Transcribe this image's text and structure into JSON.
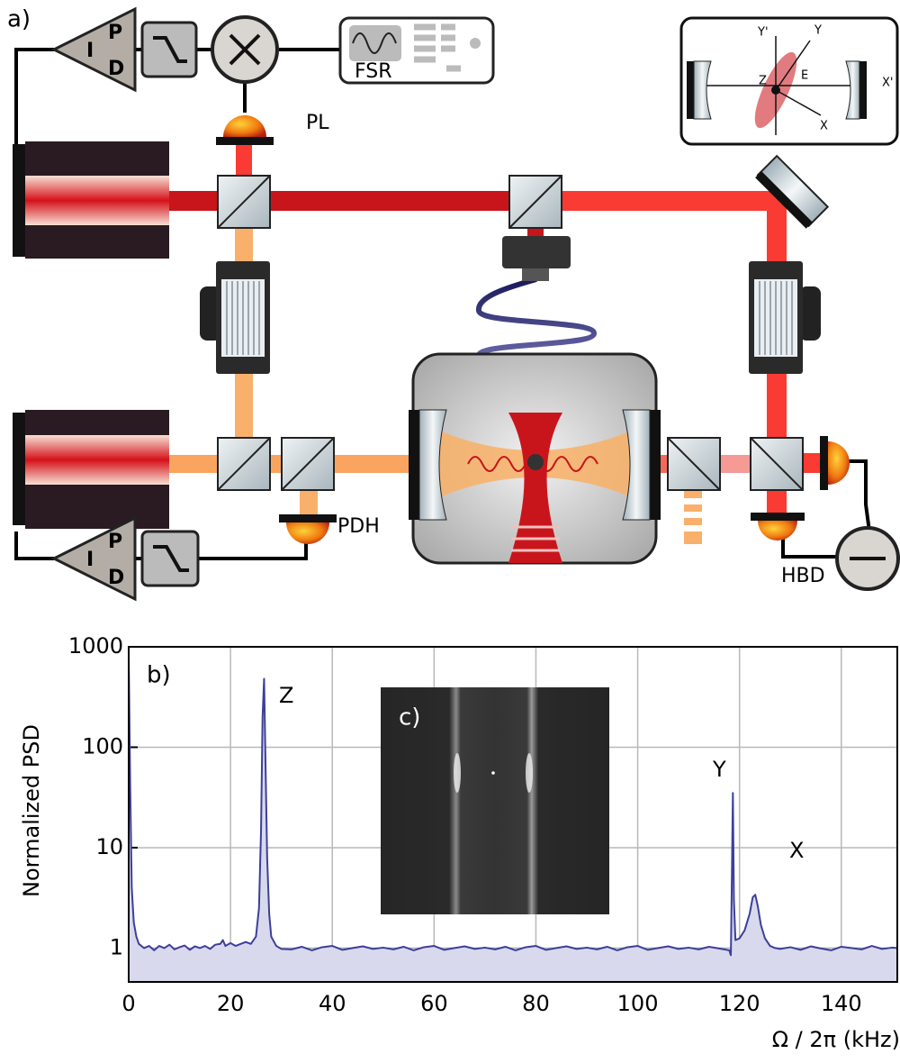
{
  "diagram": {
    "panel_label": "a)",
    "labels": {
      "pl": "PL",
      "fsr": "FSR",
      "pdh": "PDH",
      "hbd": "HBD"
    },
    "pid_top": {
      "p": "P",
      "i": "I",
      "d": "D"
    },
    "pid_bottom": {
      "p": "P",
      "i": "I",
      "d": "D"
    },
    "axes_inset": {
      "y_prime": "Y'",
      "y": "Y",
      "z": "Z",
      "e": "E",
      "x_prime": "X'",
      "x": "X"
    }
  },
  "chart_data": {
    "type": "line",
    "panel_label": "b)",
    "annotations": [
      "Z",
      "Y",
      "X"
    ],
    "xlabel": "Ω / 2π (kHz)",
    "ylabel": "Normalized PSD",
    "xlim": [
      0,
      151
    ],
    "ylim": [
      0.46,
      1000
    ],
    "log_y": true,
    "grid": true,
    "xticks": [
      0,
      20,
      40,
      60,
      80,
      100,
      120,
      140
    ],
    "yticks": [
      1,
      10,
      100,
      1000
    ],
    "x": [
      0,
      0.3,
      0.6,
      1,
      1.5,
      2,
      3,
      4,
      5,
      6,
      7,
      8,
      9,
      10,
      11,
      12,
      13,
      14,
      15,
      16,
      17,
      18,
      18.5,
      19,
      20,
      21,
      22,
      23,
      24,
      25,
      25.6,
      26,
      26.3,
      26.6,
      26.9,
      27.2,
      27.6,
      28,
      29,
      30,
      32,
      34,
      36,
      38,
      40,
      42,
      44,
      46,
      48,
      50,
      52,
      54,
      56,
      58,
      60,
      62,
      64,
      66,
      68,
      70,
      72,
      74,
      76,
      78,
      80,
      82,
      84,
      86,
      88,
      90,
      92,
      94,
      96,
      98,
      100,
      102,
      104,
      106,
      108,
      110,
      112,
      114,
      116,
      117,
      118,
      118.3,
      118.5,
      118.7,
      118.9,
      119.2,
      120,
      121,
      122,
      122.6,
      123.1,
      123.6,
      124.2,
      125,
      126,
      127,
      128,
      130,
      132,
      134,
      136,
      138,
      140,
      142,
      144,
      146,
      148,
      150,
      151
    ],
    "series": [
      {
        "color": "#3d3f9a",
        "fill": "#d8d9ec",
        "values": [
          800,
          40,
          4,
          1.8,
          1.3,
          1.1,
          1.0,
          1.05,
          0.95,
          1.05,
          1.0,
          1.08,
          0.97,
          1.02,
          1.06,
          0.96,
          1.04,
          1.0,
          1.05,
          0.98,
          1.08,
          1.1,
          1.2,
          1.05,
          1.12,
          1.05,
          1.1,
          1.15,
          1.1,
          1.3,
          2.5,
          15,
          200,
          480,
          60,
          8,
          2.2,
          1.3,
          1.05,
          0.98,
          0.97,
          1.03,
          0.95,
          1.02,
          1.05,
          0.96,
          1.0,
          1.04,
          0.98,
          1.01,
          0.97,
          1.03,
          0.95,
          1.02,
          1.05,
          0.96,
          1.0,
          1.04,
          0.98,
          1.01,
          0.97,
          1.03,
          0.95,
          1.02,
          1.05,
          0.96,
          1.0,
          1.04,
          0.98,
          1.01,
          0.97,
          1.03,
          0.95,
          1.02,
          1.05,
          0.96,
          1.0,
          1.04,
          0.98,
          1.01,
          0.97,
          1.03,
          0.99,
          0.97,
          0.95,
          0.85,
          5,
          35,
          3,
          1.2,
          1.25,
          1.5,
          2.2,
          3.2,
          3.4,
          2.6,
          1.7,
          1.25,
          1.05,
          1.0,
          0.98,
          1.02,
          0.96,
          1.04,
          0.99,
          0.95,
          1.03,
          1.0,
          0.97,
          1.05,
          0.98,
          1.01,
          1.0
        ]
      }
    ]
  },
  "inset": {
    "panel_label": "c)"
  }
}
